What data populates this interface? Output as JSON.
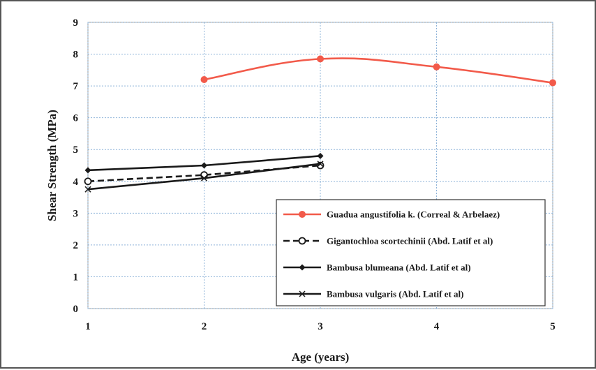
{
  "chart_data": {
    "type": "line",
    "xlabel": "Age (years)",
    "ylabel": "Shear Strength (MPa)",
    "xlim": [
      1,
      5
    ],
    "ylim": [
      0,
      9
    ],
    "x_ticks": [
      "1",
      "2",
      "3",
      "4",
      "5"
    ],
    "y_ticks": [
      "0",
      "1",
      "2",
      "3",
      "4",
      "5",
      "6",
      "7",
      "8",
      "9"
    ],
    "grid": true,
    "legend_position": "bottom-right",
    "series": [
      {
        "name": "Guadua angustifolia k. (Correal & Arbelaez)",
        "color": "#f25a4a",
        "style": "solid-smooth",
        "marker": "circle",
        "x": [
          2,
          3,
          4,
          5
        ],
        "y": [
          7.2,
          7.85,
          7.6,
          7.1
        ]
      },
      {
        "name": "Gigantochloa scortechinii (Abd. Latif et al)",
        "color": "#1a1a1a",
        "style": "dashed",
        "marker": "open-circle",
        "x": [
          1,
          2,
          3
        ],
        "y": [
          4.0,
          4.2,
          4.5
        ]
      },
      {
        "name": "Bambusa blumeana (Abd. Latif et al)",
        "color": "#1a1a1a",
        "style": "solid",
        "marker": "diamond",
        "x": [
          1,
          2,
          3
        ],
        "y": [
          4.35,
          4.5,
          4.8
        ]
      },
      {
        "name": "Bambusa vulgaris (Abd. Latif et al)",
        "color": "#1a1a1a",
        "style": "solid",
        "marker": "cross",
        "x": [
          1,
          2,
          3
        ],
        "y": [
          3.75,
          4.1,
          4.55
        ]
      }
    ]
  }
}
